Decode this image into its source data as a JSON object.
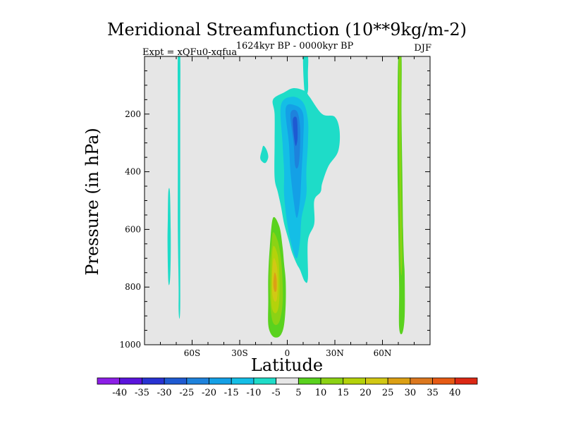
{
  "chart_data": {
    "type": "contour",
    "title": "Meridional Streamfunction (10**9kg/m-2)",
    "left_subtitle": "Expt = xQFu0-xqfua",
    "center_subtitle": "1624kyr BP - 0000kyr BP",
    "right_subtitle": "DJF",
    "xlabel": "Latitude",
    "ylabel": "Pressure (in hPa)",
    "xlim": [
      -90,
      90
    ],
    "ylim": [
      1000,
      0
    ],
    "x_ticks": [
      {
        "value": -60,
        "label": "60S"
      },
      {
        "value": -30,
        "label": "30S"
      },
      {
        "value": 0,
        "label": "0"
      },
      {
        "value": 30,
        "label": "30N"
      },
      {
        "value": 60,
        "label": "60N"
      }
    ],
    "y_ticks": [
      {
        "value": 200,
        "label": "200"
      },
      {
        "value": 400,
        "label": "400"
      },
      {
        "value": 600,
        "label": "600"
      },
      {
        "value": 800,
        "label": "800"
      },
      {
        "value": 1000,
        "label": "1000"
      }
    ],
    "background_color": "#e6e6e6",
    "contour_levels": [
      -40,
      -35,
      -30,
      -25,
      -20,
      -15,
      -10,
      -5,
      5,
      10,
      15,
      20,
      25,
      30,
      35,
      40
    ],
    "colorbar_labels": [
      "-40",
      "-35",
      "-30",
      "-25",
      "-20",
      "-15",
      "-10",
      "-5",
      "5",
      "10",
      "15",
      "20",
      "25",
      "30",
      "35",
      "40"
    ],
    "colorbar_colors": [
      "#8c1ee6",
      "#5a14dc",
      "#2832d2",
      "#1e5ad2",
      "#1e82dc",
      "#14a0e6",
      "#14bee6",
      "#1edcc8",
      "#e6e6e6",
      "#5ad21e",
      "#8cd214",
      "#b4d20a",
      "#d2c814",
      "#dca014",
      "#dc781e",
      "#e65a14",
      "#dc2814"
    ],
    "features": [
      {
        "name": "sh-polar-jet-negative",
        "band": -5,
        "color": "#1edcc8",
        "outline": [
          [
            -69,
            0
          ],
          [
            -69,
            200
          ],
          [
            -69,
            400
          ],
          [
            -69,
            600
          ],
          [
            -68.5,
            800
          ],
          [
            -68.5,
            880
          ],
          [
            -68,
            910
          ],
          [
            -67.5,
            870
          ],
          [
            -67.5,
            700
          ],
          [
            -67.5,
            400
          ],
          [
            -67.5,
            200
          ],
          [
            -67.5,
            0
          ]
        ]
      },
      {
        "name": "sh-polar-jet-negative-outer",
        "band": -5,
        "color": "#1edcc8",
        "outline": [
          [
            -75,
            470
          ],
          [
            -74,
            470
          ],
          [
            -73.5,
            600
          ],
          [
            -73.5,
            700
          ],
          [
            -74,
            780
          ],
          [
            -75,
            780
          ],
          [
            -75.5,
            650
          ],
          [
            -75.3,
            560
          ]
        ]
      },
      {
        "name": "tropical-upper-cell-negative",
        "band": -5,
        "color": "#1edcc8",
        "outline": [
          [
            -9,
            150
          ],
          [
            -2,
            125
          ],
          [
            4,
            110
          ],
          [
            11,
            120
          ],
          [
            14,
            140
          ],
          [
            22,
            200
          ],
          [
            30,
            210
          ],
          [
            33,
            260
          ],
          [
            32,
            330
          ],
          [
            26,
            380
          ],
          [
            22,
            440
          ],
          [
            21,
            470
          ],
          [
            17,
            500
          ],
          [
            17,
            580
          ],
          [
            13,
            640
          ],
          [
            13,
            770
          ],
          [
            11,
            780
          ],
          [
            8,
            740
          ],
          [
            6,
            720
          ],
          [
            3,
            680
          ],
          [
            1,
            640
          ],
          [
            -2,
            580
          ],
          [
            -4,
            520
          ],
          [
            -6,
            470
          ],
          [
            -8,
            420
          ],
          [
            -8,
            300
          ],
          [
            -8,
            200
          ]
        ]
      },
      {
        "name": "tropical-upper-cell-minus-10",
        "band": -10,
        "color": "#14bee6",
        "outline": [
          [
            -4,
            170
          ],
          [
            3,
            140
          ],
          [
            10,
            160
          ],
          [
            13,
            220
          ],
          [
            13,
            300
          ],
          [
            12,
            400
          ],
          [
            12,
            480
          ],
          [
            9,
            560
          ],
          [
            8,
            640
          ],
          [
            6,
            700
          ],
          [
            3,
            660
          ],
          [
            0,
            580
          ],
          [
            -2,
            480
          ],
          [
            -2,
            400
          ],
          [
            -3,
            300
          ]
        ]
      },
      {
        "name": "tropical-upper-cell-minus-15",
        "band": -15,
        "color": "#14a0e6",
        "outline": [
          [
            -1,
            180
          ],
          [
            5,
            170
          ],
          [
            10,
            200
          ],
          [
            10,
            300
          ],
          [
            9,
            400
          ],
          [
            8,
            500
          ],
          [
            6,
            560
          ],
          [
            4,
            500
          ],
          [
            2,
            400
          ],
          [
            1,
            300
          ]
        ]
      },
      {
        "name": "tropical-upper-cell-minus-20",
        "band": -20,
        "color": "#1e82dc",
        "outline": [
          [
            2,
            200
          ],
          [
            6,
            190
          ],
          [
            8,
            240
          ],
          [
            8,
            320
          ],
          [
            7,
            380
          ],
          [
            5,
            380
          ],
          [
            4,
            300
          ]
        ]
      },
      {
        "name": "tropical-upper-cell-minus-25",
        "band": -25,
        "color": "#1e5ad2",
        "outline": [
          [
            3.5,
            220
          ],
          [
            6,
            215
          ],
          [
            6.5,
            280
          ],
          [
            5.5,
            310
          ],
          [
            4.5,
            290
          ]
        ]
      },
      {
        "name": "upper-tropical-pillar",
        "band": -5,
        "color": "#1edcc8",
        "outline": [
          [
            10,
            0
          ],
          [
            13,
            0
          ],
          [
            13,
            60
          ],
          [
            13,
            120
          ],
          [
            11,
            130
          ]
        ]
      },
      {
        "name": "small-negative-blob",
        "band": -5,
        "color": "#1edcc8",
        "outline": [
          [
            -15,
            310
          ],
          [
            -13,
            325
          ],
          [
            -12,
            350
          ],
          [
            -14,
            370
          ],
          [
            -17,
            355
          ],
          [
            -16,
            325
          ]
        ]
      },
      {
        "name": "lower-tropical-cell-positive",
        "band": 5,
        "color": "#5ad21e",
        "outline": [
          [
            -9,
            560
          ],
          [
            -5,
            590
          ],
          [
            -3,
            660
          ],
          [
            -2,
            720
          ],
          [
            -1,
            780
          ],
          [
            -1,
            860
          ],
          [
            -2,
            930
          ],
          [
            -4,
            965
          ],
          [
            -7,
            975
          ],
          [
            -10,
            965
          ],
          [
            -12,
            930
          ],
          [
            -12,
            850
          ],
          [
            -12,
            760
          ],
          [
            -11,
            660
          ]
        ]
      },
      {
        "name": "lower-tropical-cell-10",
        "band": 10,
        "color": "#8cd214",
        "outline": [
          [
            -9,
            610
          ],
          [
            -6,
            640
          ],
          [
            -4,
            700
          ],
          [
            -3,
            780
          ],
          [
            -3,
            860
          ],
          [
            -5,
            920
          ],
          [
            -8,
            930
          ],
          [
            -10,
            900
          ],
          [
            -11,
            820
          ],
          [
            -11,
            720
          ],
          [
            -10,
            660
          ]
        ]
      },
      {
        "name": "lower-tropical-cell-15",
        "band": 15,
        "color": "#b4d20a",
        "outline": [
          [
            -9,
            660
          ],
          [
            -6,
            690
          ],
          [
            -5,
            760
          ],
          [
            -5,
            840
          ],
          [
            -6,
            880
          ],
          [
            -8,
            890
          ],
          [
            -10,
            860
          ],
          [
            -10,
            760
          ]
        ]
      },
      {
        "name": "lower-tropical-cell-20",
        "band": 20,
        "color": "#d2c814",
        "outline": [
          [
            -8.5,
            700
          ],
          [
            -6.5,
            730
          ],
          [
            -6,
            790
          ],
          [
            -6.5,
            840
          ],
          [
            -8,
            850
          ],
          [
            -9.5,
            820
          ],
          [
            -9.5,
            750
          ]
        ]
      },
      {
        "name": "lower-tropical-cell-25",
        "band": 25,
        "color": "#dca014",
        "outline": [
          [
            -8,
            750
          ],
          [
            -6.8,
            770
          ],
          [
            -6.8,
            810
          ],
          [
            -8,
            815
          ],
          [
            -8.8,
            790
          ]
        ]
      },
      {
        "name": "nh-polar-positive",
        "band": 5,
        "color": "#5ad21e",
        "outline": [
          [
            70,
            0
          ],
          [
            72,
            0
          ],
          [
            72,
            200
          ],
          [
            72.5,
            400
          ],
          [
            73,
            600
          ],
          [
            73.5,
            700
          ],
          [
            74,
            760
          ],
          [
            74,
            900
          ],
          [
            72.5,
            960
          ],
          [
            70.5,
            940
          ],
          [
            70.5,
            800
          ],
          [
            70,
            600
          ],
          [
            69.5,
            400
          ],
          [
            69.5,
            200
          ]
        ]
      },
      {
        "name": "nh-polar-positive-10",
        "band": 10,
        "color": "#8cd214",
        "outline": [
          [
            70.5,
            0
          ],
          [
            71.5,
            0
          ],
          [
            71.5,
            200
          ],
          [
            71.8,
            400
          ],
          [
            72.3,
            600
          ],
          [
            72.5,
            700
          ],
          [
            72,
            760
          ],
          [
            71.2,
            700
          ],
          [
            70.8,
            500
          ],
          [
            70.5,
            300
          ]
        ]
      }
    ]
  }
}
